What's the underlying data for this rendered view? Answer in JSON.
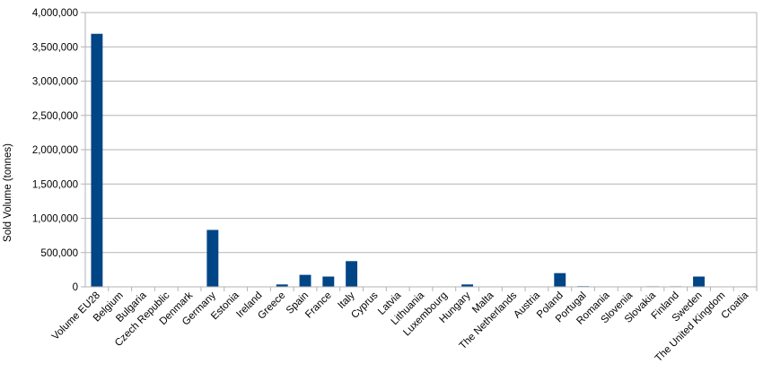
{
  "chart_data": {
    "type": "bar",
    "title": "",
    "xlabel": "",
    "ylabel": "Sold Volume (tonnes)",
    "ylim": [
      0,
      4000000
    ],
    "yticks": [
      0,
      500000,
      1000000,
      1500000,
      2000000,
      2500000,
      3000000,
      3500000,
      4000000
    ],
    "ytick_labels": [
      "0",
      "500,000",
      "1,000,000",
      "1,500,000",
      "2,000,000",
      "2,500,000",
      "3,000,000",
      "3,500,000",
      "4,000,000"
    ],
    "grid": true,
    "legend": "none",
    "bar_color": "#004586",
    "categories": [
      "Volume EU28",
      "Belgium",
      "Bulgaria",
      "Czech Republic",
      "Denmark",
      "Germany",
      "Estonia",
      "Ireland",
      "Greece",
      "Spain",
      "France",
      "Italy",
      "Cyprus",
      "Latvia",
      "Lithuania",
      "Luxembourg",
      "Hungary",
      "Malta",
      "The Netherlands",
      "Austria",
      "Poland",
      "Portugal",
      "Romania",
      "Slovenia",
      "Slovakia",
      "Finland",
      "Sweden",
      "The United Kingdom",
      "Croatia"
    ],
    "values": [
      3690000,
      0,
      0,
      0,
      0,
      830000,
      0,
      0,
      35000,
      175000,
      150000,
      375000,
      0,
      0,
      0,
      0,
      35000,
      0,
      0,
      0,
      200000,
      10000,
      0,
      0,
      8000,
      8000,
      150000,
      0,
      0
    ]
  }
}
